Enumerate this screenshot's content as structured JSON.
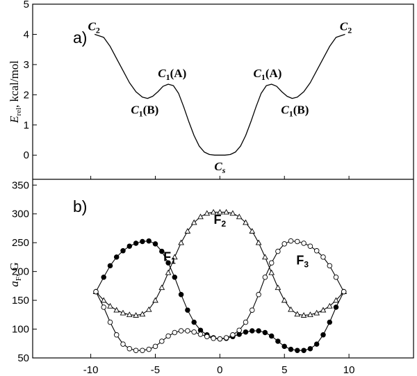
{
  "chart_data": [
    {
      "panel": "a)",
      "type": "line",
      "ylabel": "E",
      "ylabel_sub": "rel",
      "ylabel_unit": ", kcal/mol",
      "xlim": [
        -14.5,
        15
      ],
      "ylim": [
        -0.8,
        5
      ],
      "yticks": [
        "0",
        "1",
        "2",
        "3",
        "4",
        "5"
      ],
      "series": [
        {
          "x": [
            -9.7,
            -9.0,
            -8.5,
            -8.0,
            -7.5,
            -7.0,
            -6.5,
            -6.0,
            -5.6,
            -5.2,
            -4.8,
            -4.4,
            -4.0,
            -3.6,
            -3.2,
            -2.8,
            -2.4,
            -2.0,
            -1.6,
            -1.2,
            -0.8,
            -0.4,
            0.0,
            0.4,
            0.8,
            1.2,
            1.6,
            2.0,
            2.4,
            2.8,
            3.2,
            3.6,
            4.0,
            4.4,
            4.8,
            5.2,
            5.6,
            6.0,
            6.5,
            7.0,
            7.5,
            8.0,
            8.5,
            9.0,
            9.7
          ],
          "y": [
            4.0,
            3.9,
            3.6,
            3.2,
            2.8,
            2.4,
            2.1,
            1.92,
            1.88,
            1.95,
            2.1,
            2.28,
            2.35,
            2.3,
            2.05,
            1.6,
            1.1,
            0.65,
            0.3,
            0.1,
            0.02,
            0.0,
            0.0,
            0.0,
            0.02,
            0.1,
            0.3,
            0.65,
            1.1,
            1.6,
            2.05,
            2.3,
            2.35,
            2.28,
            2.1,
            1.95,
            1.88,
            1.92,
            2.1,
            2.4,
            2.8,
            3.2,
            3.6,
            3.9,
            4.0
          ]
        }
      ],
      "annotations": [
        {
          "main": "C",
          "sub": "2",
          "suffix": "",
          "x": -9.7,
          "y": 4.0
        },
        {
          "main": "C",
          "sub": "1",
          "suffix": "(A)",
          "x": -3.8,
          "y": 2.35
        },
        {
          "main": "C",
          "sub": "1",
          "suffix": "(B)",
          "x": -5.6,
          "y": 1.88
        },
        {
          "main": "C",
          "sub": "s",
          "suffix": "",
          "x": 0.0,
          "y": 0.0
        },
        {
          "main": "C",
          "sub": "1",
          "suffix": "(A)",
          "x": 3.8,
          "y": 2.35
        },
        {
          "main": "C",
          "sub": "1",
          "suffix": "(B)",
          "x": 5.6,
          "y": 1.88
        },
        {
          "main": "C",
          "sub": "2",
          "suffix": "",
          "x": 9.7,
          "y": 4.0
        }
      ]
    },
    {
      "panel": "b)",
      "type": "line",
      "ylabel": "a",
      "ylabel_sub": "F",
      "ylabel_unit": ", G",
      "xlim": [
        -14.5,
        15
      ],
      "ylim": [
        50,
        360
      ],
      "xticks": [
        "-10",
        "-5",
        "0",
        "5",
        "10"
      ],
      "yticks": [
        "50",
        "100",
        "150",
        "200",
        "250",
        "300",
        "350"
      ],
      "series": [
        {
          "name": "F1",
          "label": "F",
          "label_sub": "1",
          "marker": "filled-circle",
          "x": [
            -9.6,
            -9.0,
            -8.5,
            -8.0,
            -7.5,
            -7.0,
            -6.5,
            -6.0,
            -5.5,
            -5.0,
            -4.5,
            -4.0,
            -3.5,
            -3.0,
            -2.5,
            -2.0,
            -1.5,
            -1.0,
            -0.5,
            0.0,
            0.5,
            1.0,
            1.5,
            2.0,
            2.5,
            3.0,
            3.5,
            4.0,
            4.5,
            5.0,
            5.5,
            6.0,
            6.5,
            7.0,
            7.5,
            8.0,
            8.5,
            9.0,
            9.6
          ],
          "y": [
            165,
            190,
            210,
            225,
            236,
            244,
            249,
            252,
            253,
            248,
            235,
            215,
            190,
            160,
            133,
            112,
            98,
            90,
            85,
            83,
            84,
            87,
            91,
            95,
            97,
            97,
            94,
            88,
            79,
            70,
            65,
            63,
            63,
            66,
            74,
            90,
            112,
            138,
            165
          ]
        },
        {
          "name": "F2",
          "label": "F",
          "label_sub": "2",
          "marker": "triangle",
          "x": [
            -9.6,
            -9.0,
            -8.5,
            -8.0,
            -7.5,
            -7.0,
            -6.5,
            -6.0,
            -5.5,
            -5.0,
            -4.5,
            -4.0,
            -3.5,
            -3.0,
            -2.5,
            -2.0,
            -1.5,
            -1.0,
            -0.5,
            0.0,
            0.5,
            1.0,
            1.5,
            2.0,
            2.5,
            3.0,
            3.5,
            4.0,
            4.5,
            5.0,
            5.5,
            6.0,
            6.5,
            7.0,
            7.5,
            8.0,
            8.5,
            9.0,
            9.6
          ],
          "y": [
            165,
            150,
            140,
            133,
            128,
            125,
            124,
            126,
            134,
            150,
            172,
            198,
            225,
            250,
            270,
            285,
            295,
            301,
            303,
            303,
            303,
            301,
            295,
            285,
            270,
            250,
            225,
            198,
            172,
            150,
            134,
            126,
            124,
            125,
            128,
            133,
            140,
            150,
            165
          ]
        },
        {
          "name": "F3",
          "label": "F",
          "label_sub": "3",
          "marker": "open-circle",
          "x": [
            -9.6,
            -9.0,
            -8.5,
            -8.0,
            -7.5,
            -7.0,
            -6.5,
            -6.0,
            -5.5,
            -5.0,
            -4.5,
            -4.0,
            -3.5,
            -3.0,
            -2.5,
            -2.0,
            -1.5,
            -1.0,
            -0.5,
            0.0,
            0.5,
            1.0,
            1.5,
            2.0,
            2.5,
            3.0,
            3.5,
            4.0,
            4.5,
            5.0,
            5.5,
            6.0,
            6.5,
            7.0,
            7.5,
            8.0,
            8.5,
            9.0,
            9.6
          ],
          "y": [
            165,
            138,
            112,
            90,
            74,
            66,
            63,
            63,
            65,
            70,
            79,
            88,
            94,
            97,
            97,
            95,
            91,
            87,
            84,
            83,
            85,
            90,
            98,
            112,
            133,
            160,
            190,
            215,
            235,
            248,
            253,
            252,
            249,
            244,
            236,
            225,
            210,
            190,
            165
          ]
        }
      ]
    }
  ]
}
